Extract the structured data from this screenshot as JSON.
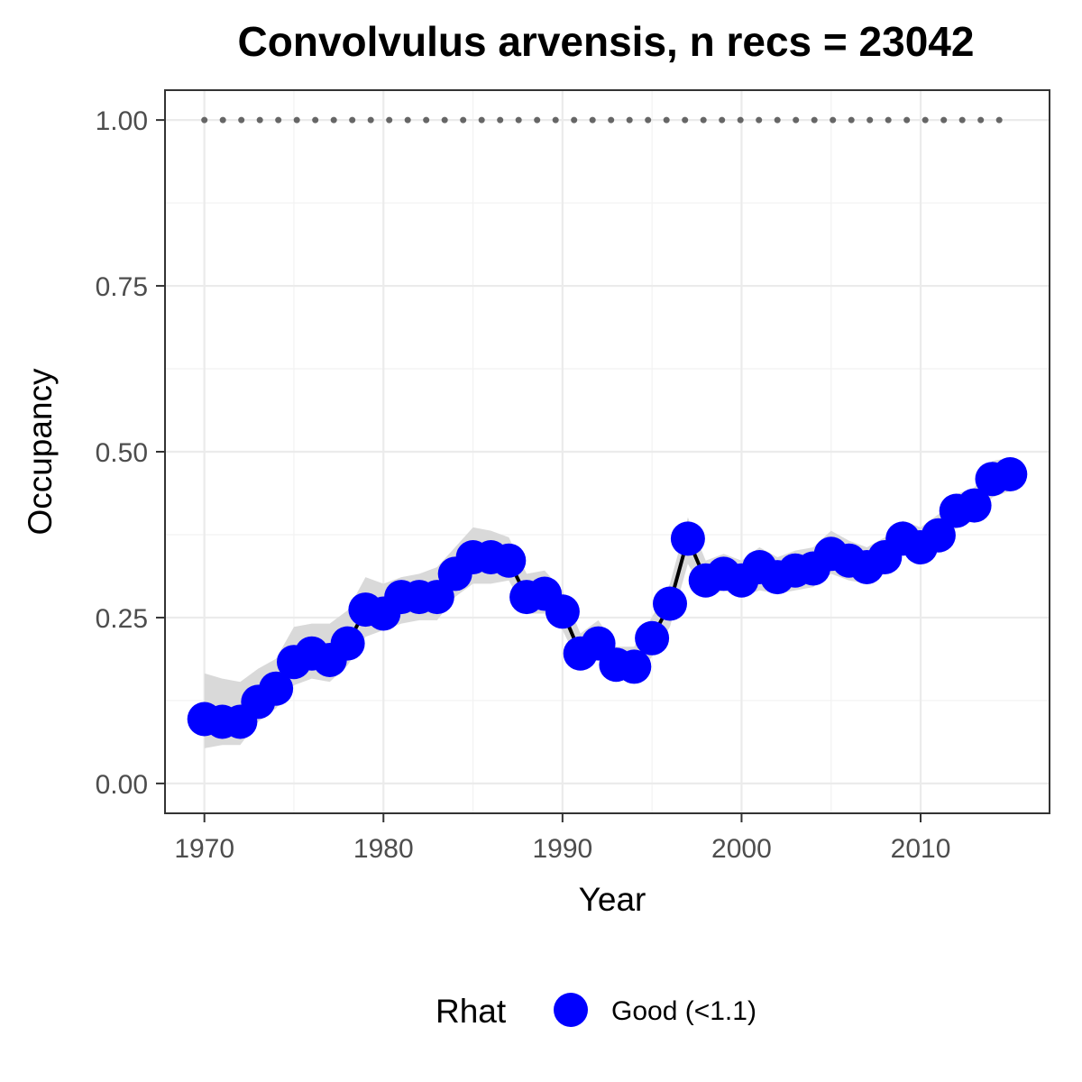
{
  "chart_data": {
    "type": "line",
    "title": "Convolvulus arvensis, n recs = 23042",
    "xlabel": "Year",
    "ylabel": "Occupancy",
    "xlim": [
      1967.8,
      2017.2
    ],
    "ylim": [
      -0.045,
      1.045
    ],
    "x_ticks": [
      1970,
      1980,
      1990,
      2000,
      2010
    ],
    "y_ticks": [
      0.0,
      0.25,
      0.5,
      0.75,
      1.0
    ],
    "y_tick_labels": [
      "0.00",
      "0.25",
      "0.50",
      "0.75",
      "1.00"
    ],
    "grid": true,
    "legend": {
      "title": "Rhat",
      "position": "bottom",
      "entries": [
        {
          "label": "Good (<1.1)",
          "color": "#0000ff"
        }
      ]
    },
    "series": [
      {
        "x": [
          1970,
          1971,
          1972,
          1973,
          1974,
          1975,
          1976,
          1977,
          1978,
          1979,
          1980,
          1981,
          1982,
          1983,
          1984,
          1985,
          1986,
          1987,
          1988,
          1989,
          1990,
          1991,
          1992,
          1993,
          1994,
          1995,
          1996,
          1997,
          1998,
          1999,
          2000,
          2001,
          2002,
          2003,
          2004,
          2005,
          2006,
          2007,
          2008,
          2009,
          2010,
          2011,
          2012,
          2013,
          2014,
          2015
        ],
        "values": [
          0.097,
          0.093,
          0.093,
          0.123,
          0.143,
          0.183,
          0.196,
          0.186,
          0.211,
          0.262,
          0.256,
          0.281,
          0.281,
          0.281,
          0.316,
          0.341,
          0.341,
          0.336,
          0.281,
          0.286,
          0.259,
          0.196,
          0.211,
          0.179,
          0.176,
          0.219,
          0.271,
          0.369,
          0.306,
          0.316,
          0.306,
          0.326,
          0.311,
          0.321,
          0.324,
          0.346,
          0.336,
          0.326,
          0.341,
          0.369,
          0.356,
          0.374,
          0.411,
          0.419,
          0.459,
          0.466
        ],
        "lower": [
          0.053,
          0.058,
          0.058,
          0.093,
          0.113,
          0.148,
          0.158,
          0.153,
          0.178,
          0.221,
          0.231,
          0.241,
          0.246,
          0.246,
          0.281,
          0.301,
          0.301,
          0.306,
          0.256,
          0.256,
          0.231,
          0.176,
          0.186,
          0.161,
          0.156,
          0.191,
          0.236,
          0.331,
          0.281,
          0.291,
          0.281,
          0.291,
          0.286,
          0.291,
          0.296,
          0.316,
          0.306,
          0.301,
          0.316,
          0.346,
          0.336,
          0.351,
          0.386,
          0.396,
          0.431,
          0.441
        ],
        "upper": [
          0.166,
          0.158,
          0.153,
          0.173,
          0.188,
          0.236,
          0.241,
          0.241,
          0.261,
          0.311,
          0.301,
          0.311,
          0.316,
          0.326,
          0.356,
          0.386,
          0.381,
          0.371,
          0.316,
          0.321,
          0.291,
          0.226,
          0.246,
          0.206,
          0.206,
          0.251,
          0.301,
          0.401,
          0.336,
          0.346,
          0.336,
          0.356,
          0.341,
          0.351,
          0.356,
          0.381,
          0.366,
          0.356,
          0.371,
          0.396,
          0.386,
          0.406,
          0.436,
          0.446,
          0.486,
          0.491
        ],
        "color": "#0000ff",
        "line_color": "#000000",
        "ribbon_color": "#d9d9d9"
      }
    ],
    "reference_line": {
      "y": 1.0,
      "style": "dotted",
      "color": "#666666"
    }
  }
}
